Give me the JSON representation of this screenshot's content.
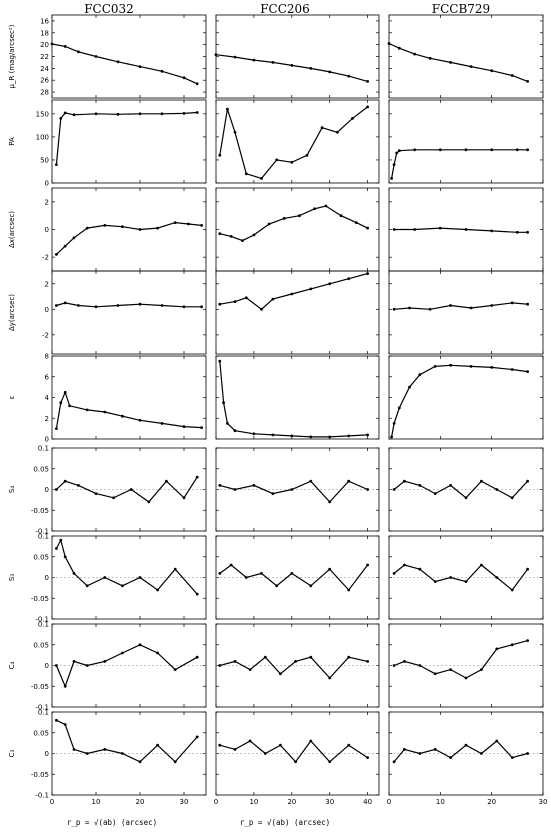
{
  "columns": [
    "FCC032",
    "FCC206",
    "FCCB729"
  ],
  "x_label": "r_p = √(ab) (arcsec)",
  "rows": [
    {
      "key": "mu",
      "label": "μ_R (mag/arcsec²)",
      "ylim": [
        29,
        15
      ],
      "ticks": [
        16,
        18,
        20,
        22,
        24,
        26,
        28
      ]
    },
    {
      "key": "pa",
      "label": "PA",
      "ylim": [
        0,
        180
      ],
      "ticks": [
        0,
        50,
        100,
        150
      ]
    },
    {
      "key": "dx",
      "label": "Δx(arcsec)",
      "ylim": [
        -3,
        3
      ],
      "ticks": [
        -2,
        0,
        2
      ]
    },
    {
      "key": "dy",
      "label": "Δy(arcsec)",
      "ylim": [
        -3.5,
        3
      ],
      "ticks": [
        -2,
        0,
        2
      ]
    },
    {
      "key": "eps",
      "label": "ε",
      "ylim": [
        0,
        8
      ],
      "ticks": [
        0,
        2,
        4,
        6,
        8
      ]
    },
    {
      "key": "s4",
      "label": "S₄",
      "ylim": [
        -0.1,
        0.1
      ],
      "ticks": [
        -0.1,
        -0.05,
        0,
        0.05,
        0.1
      ]
    },
    {
      "key": "s3",
      "label": "S₃",
      "ylim": [
        -0.1,
        0.1
      ],
      "ticks": [
        -0.1,
        -0.05,
        0,
        0.05,
        0.1
      ]
    },
    {
      "key": "c4",
      "label": "C₄",
      "ylim": [
        -0.1,
        0.1
      ],
      "ticks": [
        -0.1,
        -0.05,
        0,
        0.05,
        0.1
      ]
    },
    {
      "key": "c3",
      "label": "C₃",
      "ylim": [
        -0.1,
        0.1
      ],
      "ticks": [
        -0.1,
        -0.05,
        0,
        0.05,
        0.1
      ]
    }
  ],
  "chart_data": [
    {
      "type": "scatter",
      "galaxy": "FCC032",
      "xlim": [
        0,
        35
      ],
      "xticks": [
        0,
        10,
        20,
        30
      ],
      "series": {
        "mu": [
          [
            0,
            19.9
          ],
          [
            3,
            20.3
          ],
          [
            6,
            21.2
          ],
          [
            10,
            22.0
          ],
          [
            15,
            22.9
          ],
          [
            20,
            23.7
          ],
          [
            25,
            24.5
          ],
          [
            30,
            25.6
          ],
          [
            33,
            26.6
          ]
        ],
        "pa": [
          [
            1,
            40
          ],
          [
            2,
            140
          ],
          [
            3,
            152
          ],
          [
            5,
            148
          ],
          [
            10,
            150
          ],
          [
            15,
            149
          ],
          [
            20,
            150
          ],
          [
            25,
            150
          ],
          [
            30,
            151
          ],
          [
            33,
            153
          ]
        ],
        "dx": [
          [
            1,
            -1.8
          ],
          [
            3,
            -1.2
          ],
          [
            5,
            -0.6
          ],
          [
            8,
            0.1
          ],
          [
            12,
            0.3
          ],
          [
            16,
            0.2
          ],
          [
            20,
            0.0
          ],
          [
            24,
            0.1
          ],
          [
            28,
            0.5
          ],
          [
            31,
            0.4
          ],
          [
            34,
            0.3
          ]
        ],
        "dy": [
          [
            1,
            0.3
          ],
          [
            3,
            0.5
          ],
          [
            6,
            0.3
          ],
          [
            10,
            0.2
          ],
          [
            15,
            0.3
          ],
          [
            20,
            0.4
          ],
          [
            25,
            0.3
          ],
          [
            30,
            0.2
          ],
          [
            34,
            0.2
          ]
        ],
        "eps": [
          [
            1,
            1.0
          ],
          [
            2,
            3.5
          ],
          [
            3,
            4.5
          ],
          [
            4,
            3.2
          ],
          [
            8,
            2.8
          ],
          [
            12,
            2.6
          ],
          [
            16,
            2.2
          ],
          [
            20,
            1.8
          ],
          [
            25,
            1.5
          ],
          [
            30,
            1.2
          ],
          [
            34,
            1.1
          ]
        ],
        "s4": [
          [
            1,
            0.0
          ],
          [
            3,
            0.02
          ],
          [
            6,
            0.01
          ],
          [
            10,
            -0.01
          ],
          [
            14,
            -0.02
          ],
          [
            18,
            0.0
          ],
          [
            22,
            -0.03
          ],
          [
            26,
            0.02
          ],
          [
            30,
            -0.02
          ],
          [
            33,
            0.03
          ]
        ],
        "s3": [
          [
            1,
            0.07
          ],
          [
            2,
            0.09
          ],
          [
            3,
            0.05
          ],
          [
            5,
            0.01
          ],
          [
            8,
            -0.02
          ],
          [
            12,
            0.0
          ],
          [
            16,
            -0.02
          ],
          [
            20,
            0.0
          ],
          [
            24,
            -0.03
          ],
          [
            28,
            0.02
          ],
          [
            33,
            -0.04
          ]
        ],
        "c4": [
          [
            1,
            0.0
          ],
          [
            3,
            -0.05
          ],
          [
            5,
            0.01
          ],
          [
            8,
            0.0
          ],
          [
            12,
            0.01
          ],
          [
            16,
            0.03
          ],
          [
            20,
            0.05
          ],
          [
            24,
            0.03
          ],
          [
            28,
            -0.01
          ],
          [
            33,
            0.02
          ]
        ],
        "c3": [
          [
            1,
            0.08
          ],
          [
            3,
            0.07
          ],
          [
            5,
            0.01
          ],
          [
            8,
            0.0
          ],
          [
            12,
            0.01
          ],
          [
            16,
            0.0
          ],
          [
            20,
            -0.02
          ],
          [
            24,
            0.02
          ],
          [
            28,
            -0.02
          ],
          [
            33,
            0.04
          ]
        ]
      }
    },
    {
      "type": "scatter",
      "galaxy": "FCC206",
      "xlim": [
        0,
        43
      ],
      "xticks": [
        0,
        10,
        20,
        30,
        40
      ],
      "series": {
        "mu": [
          [
            0,
            21.7
          ],
          [
            5,
            22.1
          ],
          [
            10,
            22.6
          ],
          [
            15,
            23.0
          ],
          [
            20,
            23.5
          ],
          [
            25,
            24.0
          ],
          [
            30,
            24.6
          ],
          [
            35,
            25.3
          ],
          [
            40,
            26.2
          ]
        ],
        "pa": [
          [
            1,
            60
          ],
          [
            3,
            160
          ],
          [
            5,
            110
          ],
          [
            8,
            20
          ],
          [
            12,
            10
          ],
          [
            16,
            50
          ],
          [
            20,
            45
          ],
          [
            24,
            60
          ],
          [
            28,
            120
          ],
          [
            32,
            110
          ],
          [
            36,
            140
          ],
          [
            40,
            165
          ]
        ],
        "dx": [
          [
            1,
            -0.3
          ],
          [
            4,
            -0.5
          ],
          [
            7,
            -0.8
          ],
          [
            10,
            -0.4
          ],
          [
            14,
            0.4
          ],
          [
            18,
            0.8
          ],
          [
            22,
            1.0
          ],
          [
            26,
            1.5
          ],
          [
            29,
            1.7
          ],
          [
            33,
            1.0
          ],
          [
            37,
            0.5
          ],
          [
            40,
            0.1
          ]
        ],
        "dy": [
          [
            1,
            0.4
          ],
          [
            5,
            0.6
          ],
          [
            8,
            0.9
          ],
          [
            12,
            0.0
          ],
          [
            15,
            0.8
          ],
          [
            20,
            1.2
          ],
          [
            25,
            1.6
          ],
          [
            30,
            2.0
          ],
          [
            35,
            2.4
          ],
          [
            40,
            2.8
          ]
        ],
        "eps": [
          [
            1,
            7.5
          ],
          [
            2,
            3.5
          ],
          [
            3,
            1.5
          ],
          [
            5,
            0.8
          ],
          [
            10,
            0.5
          ],
          [
            15,
            0.4
          ],
          [
            20,
            0.3
          ],
          [
            25,
            0.2
          ],
          [
            30,
            0.2
          ],
          [
            35,
            0.3
          ],
          [
            40,
            0.4
          ]
        ],
        "s4": [
          [
            1,
            0.01
          ],
          [
            5,
            0.0
          ],
          [
            10,
            0.01
          ],
          [
            15,
            -0.01
          ],
          [
            20,
            0.0
          ],
          [
            25,
            0.02
          ],
          [
            30,
            -0.03
          ],
          [
            35,
            0.02
          ],
          [
            40,
            0.0
          ]
        ],
        "s3": [
          [
            1,
            0.01
          ],
          [
            4,
            0.03
          ],
          [
            8,
            0.0
          ],
          [
            12,
            0.01
          ],
          [
            16,
            -0.02
          ],
          [
            20,
            0.01
          ],
          [
            25,
            -0.02
          ],
          [
            30,
            0.02
          ],
          [
            35,
            -0.03
          ],
          [
            40,
            0.03
          ]
        ],
        "c4": [
          [
            1,
            0.0
          ],
          [
            5,
            0.01
          ],
          [
            9,
            -0.01
          ],
          [
            13,
            0.02
          ],
          [
            17,
            -0.02
          ],
          [
            21,
            0.01
          ],
          [
            25,
            0.02
          ],
          [
            30,
            -0.03
          ],
          [
            35,
            0.02
          ],
          [
            40,
            0.01
          ]
        ],
        "c3": [
          [
            1,
            0.02
          ],
          [
            5,
            0.01
          ],
          [
            9,
            0.03
          ],
          [
            13,
            0.0
          ],
          [
            17,
            0.02
          ],
          [
            21,
            -0.02
          ],
          [
            25,
            0.03
          ],
          [
            30,
            -0.02
          ],
          [
            35,
            0.02
          ],
          [
            40,
            -0.01
          ]
        ]
      }
    },
    {
      "type": "scatter",
      "galaxy": "FCCB729",
      "xlim": [
        0,
        30
      ],
      "xticks": [
        0,
        10,
        20,
        30
      ],
      "series": {
        "mu": [
          [
            0,
            19.8
          ],
          [
            2,
            20.6
          ],
          [
            5,
            21.6
          ],
          [
            8,
            22.3
          ],
          [
            12,
            23.0
          ],
          [
            16,
            23.7
          ],
          [
            20,
            24.4
          ],
          [
            24,
            25.2
          ],
          [
            27,
            26.2
          ]
        ],
        "pa": [
          [
            0.5,
            10
          ],
          [
            1,
            40
          ],
          [
            1.5,
            65
          ],
          [
            2,
            70
          ],
          [
            5,
            72
          ],
          [
            10,
            72
          ],
          [
            15,
            72
          ],
          [
            20,
            72
          ],
          [
            25,
            72
          ],
          [
            27,
            72
          ]
        ],
        "dx": [
          [
            1,
            0.0
          ],
          [
            5,
            0.0
          ],
          [
            10,
            0.1
          ],
          [
            15,
            0.0
          ],
          [
            20,
            -0.1
          ],
          [
            25,
            -0.2
          ],
          [
            27,
            -0.2
          ]
        ],
        "dy": [
          [
            1,
            0.0
          ],
          [
            4,
            0.1
          ],
          [
            8,
            0.0
          ],
          [
            12,
            0.3
          ],
          [
            16,
            0.1
          ],
          [
            20,
            0.3
          ],
          [
            24,
            0.5
          ],
          [
            27,
            0.4
          ]
        ],
        "eps": [
          [
            0.5,
            0.2
          ],
          [
            1,
            1.5
          ],
          [
            2,
            3.0
          ],
          [
            4,
            5.0
          ],
          [
            6,
            6.2
          ],
          [
            9,
            7.0
          ],
          [
            12,
            7.1
          ],
          [
            16,
            7.0
          ],
          [
            20,
            6.9
          ],
          [
            24,
            6.7
          ],
          [
            27,
            6.5
          ]
        ],
        "s4": [
          [
            1,
            0.0
          ],
          [
            3,
            0.02
          ],
          [
            6,
            0.01
          ],
          [
            9,
            -0.01
          ],
          [
            12,
            0.01
          ],
          [
            15,
            -0.02
          ],
          [
            18,
            0.02
          ],
          [
            21,
            0.0
          ],
          [
            24,
            -0.02
          ],
          [
            27,
            0.02
          ]
        ],
        "s3": [
          [
            1,
            0.01
          ],
          [
            3,
            0.03
          ],
          [
            6,
            0.02
          ],
          [
            9,
            -0.01
          ],
          [
            12,
            0.0
          ],
          [
            15,
            -0.01
          ],
          [
            18,
            0.03
          ],
          [
            21,
            0.0
          ],
          [
            24,
            -0.03
          ],
          [
            27,
            0.02
          ]
        ],
        "c4": [
          [
            1,
            0.0
          ],
          [
            3,
            0.01
          ],
          [
            6,
            0.0
          ],
          [
            9,
            -0.02
          ],
          [
            12,
            -0.01
          ],
          [
            15,
            -0.03
          ],
          [
            18,
            -0.01
          ],
          [
            21,
            0.04
          ],
          [
            24,
            0.05
          ],
          [
            27,
            0.06
          ]
        ],
        "c3": [
          [
            1,
            -0.02
          ],
          [
            3,
            0.01
          ],
          [
            6,
            0.0
          ],
          [
            9,
            0.01
          ],
          [
            12,
            -0.01
          ],
          [
            15,
            0.02
          ],
          [
            18,
            0.0
          ],
          [
            21,
            0.03
          ],
          [
            24,
            -0.01
          ],
          [
            27,
            0.0
          ]
        ]
      }
    }
  ]
}
